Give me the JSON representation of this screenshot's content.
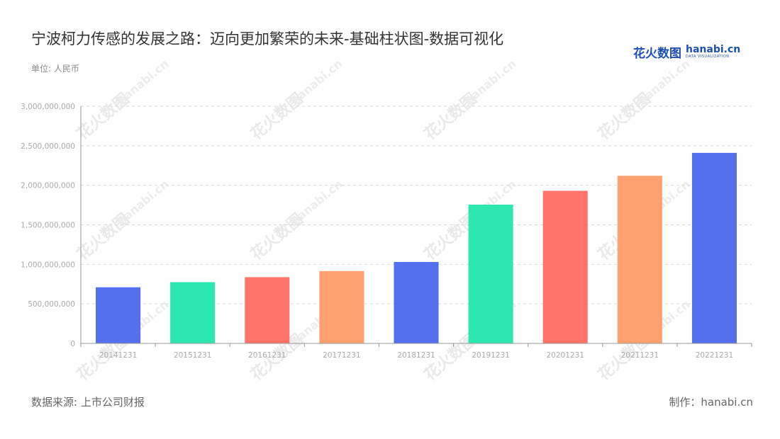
{
  "header": {
    "title": "宁波柯力传感的发展之路：迈向更加繁荣的未来-基础柱状图-数据可视化",
    "unit": "单位: 人民币"
  },
  "logo": {
    "cn": "花火数图",
    "en": "hanabi.cn",
    "sub": "DATA VISUALIZATION"
  },
  "footer": {
    "source": "数据来源: 上市公司财报",
    "credit": "制作：hanabi.cn"
  },
  "colors": {
    "palette": [
      "#5470ee",
      "#2de6b0",
      "#ff7369",
      "#ffa070"
    ],
    "grid": "#d9d9d9",
    "axis": "#999999",
    "tick_text": "#aaaaaa"
  },
  "chart_data": {
    "type": "bar",
    "categories": [
      "20141231",
      "20151231",
      "20161231",
      "20171231",
      "20181231",
      "20191231",
      "20201231",
      "20211231",
      "20221231"
    ],
    "values": [
      710000000,
      775000000,
      838000000,
      915000000,
      1030000000,
      1755000000,
      1930000000,
      2120000000,
      2410000000
    ],
    "yticks": [
      "0",
      "500,000,000",
      "1,000,000,000",
      "1,500,000,000",
      "2,000,000,000",
      "2,500,000,000",
      "3,000,000,000"
    ],
    "ylim": [
      0,
      3000000000
    ],
    "grid": true,
    "legend": "none"
  }
}
